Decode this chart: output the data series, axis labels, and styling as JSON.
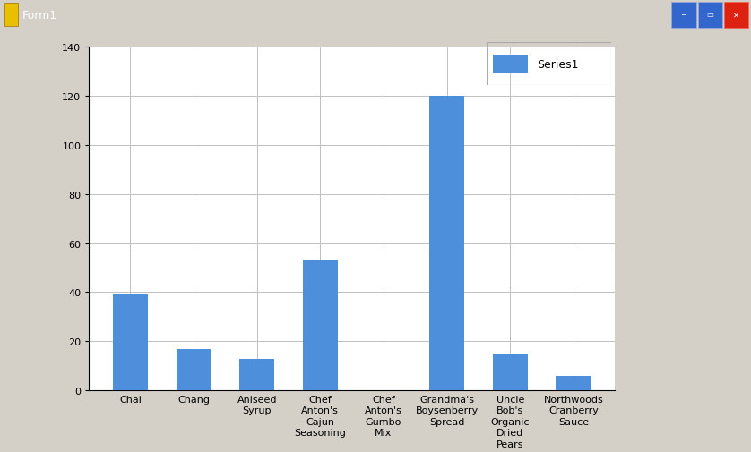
{
  "categories": [
    "Chai",
    "Chang",
    "Aniseed\nSyrup",
    "Chef\nAnton's\nCajun\nSeasoning",
    "Chef\nAnton's\nGumbo\nMix",
    "Grandma's\nBoysenberry\nSpread",
    "Uncle\nBob's\nOrganic\nDried\nPears",
    "Northwoods\nCranberry\nSauce"
  ],
  "values": [
    39,
    17,
    13,
    53,
    0,
    120,
    15,
    6
  ],
  "bar_color": "#4d8fdb",
  "legend_label": "Series1",
  "legend_color": "#4d8fdb",
  "ylim": [
    0,
    140
  ],
  "yticks": [
    0,
    20,
    40,
    60,
    80,
    100,
    120,
    140
  ],
  "outer_bg": "#d4d0c8",
  "plot_bg_color": "#ffffff",
  "grid_color": "#c0c0c0",
  "titlebar_color": "#0055ee",
  "title_text": "Form1",
  "tick_fontsize": 8,
  "legend_fontsize": 9,
  "axis_border_color": "#000000"
}
